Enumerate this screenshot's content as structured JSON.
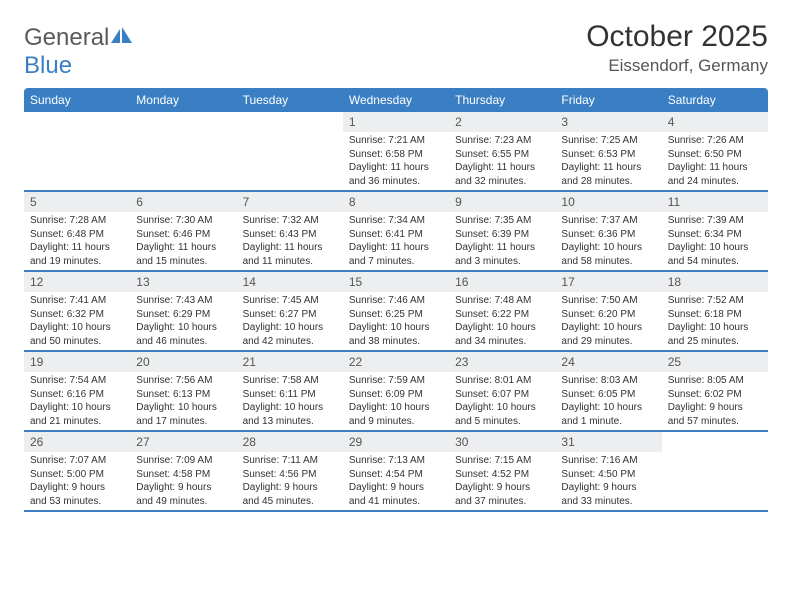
{
  "brand": {
    "part1": "General",
    "part2": "Blue"
  },
  "title": "October 2025",
  "location": "Eissendorf, Germany",
  "colors": {
    "header_bg": "#3a7fc4",
    "header_text": "#ffffff",
    "daynum_bg": "#eceeef",
    "row_divider": "#3a7fc4",
    "page_bg": "#ffffff",
    "body_text": "#333333"
  },
  "week_header": [
    "Sunday",
    "Monday",
    "Tuesday",
    "Wednesday",
    "Thursday",
    "Friday",
    "Saturday"
  ],
  "weeks": [
    [
      null,
      null,
      null,
      {
        "n": "1",
        "sr": "7:21 AM",
        "ss": "6:58 PM",
        "dl": "11 hours and 36 minutes."
      },
      {
        "n": "2",
        "sr": "7:23 AM",
        "ss": "6:55 PM",
        "dl": "11 hours and 32 minutes."
      },
      {
        "n": "3",
        "sr": "7:25 AM",
        "ss": "6:53 PM",
        "dl": "11 hours and 28 minutes."
      },
      {
        "n": "4",
        "sr": "7:26 AM",
        "ss": "6:50 PM",
        "dl": "11 hours and 24 minutes."
      }
    ],
    [
      {
        "n": "5",
        "sr": "7:28 AM",
        "ss": "6:48 PM",
        "dl": "11 hours and 19 minutes."
      },
      {
        "n": "6",
        "sr": "7:30 AM",
        "ss": "6:46 PM",
        "dl": "11 hours and 15 minutes."
      },
      {
        "n": "7",
        "sr": "7:32 AM",
        "ss": "6:43 PM",
        "dl": "11 hours and 11 minutes."
      },
      {
        "n": "8",
        "sr": "7:34 AM",
        "ss": "6:41 PM",
        "dl": "11 hours and 7 minutes."
      },
      {
        "n": "9",
        "sr": "7:35 AM",
        "ss": "6:39 PM",
        "dl": "11 hours and 3 minutes."
      },
      {
        "n": "10",
        "sr": "7:37 AM",
        "ss": "6:36 PM",
        "dl": "10 hours and 58 minutes."
      },
      {
        "n": "11",
        "sr": "7:39 AM",
        "ss": "6:34 PM",
        "dl": "10 hours and 54 minutes."
      }
    ],
    [
      {
        "n": "12",
        "sr": "7:41 AM",
        "ss": "6:32 PM",
        "dl": "10 hours and 50 minutes."
      },
      {
        "n": "13",
        "sr": "7:43 AM",
        "ss": "6:29 PM",
        "dl": "10 hours and 46 minutes."
      },
      {
        "n": "14",
        "sr": "7:45 AM",
        "ss": "6:27 PM",
        "dl": "10 hours and 42 minutes."
      },
      {
        "n": "15",
        "sr": "7:46 AM",
        "ss": "6:25 PM",
        "dl": "10 hours and 38 minutes."
      },
      {
        "n": "16",
        "sr": "7:48 AM",
        "ss": "6:22 PM",
        "dl": "10 hours and 34 minutes."
      },
      {
        "n": "17",
        "sr": "7:50 AM",
        "ss": "6:20 PM",
        "dl": "10 hours and 29 minutes."
      },
      {
        "n": "18",
        "sr": "7:52 AM",
        "ss": "6:18 PM",
        "dl": "10 hours and 25 minutes."
      }
    ],
    [
      {
        "n": "19",
        "sr": "7:54 AM",
        "ss": "6:16 PM",
        "dl": "10 hours and 21 minutes."
      },
      {
        "n": "20",
        "sr": "7:56 AM",
        "ss": "6:13 PM",
        "dl": "10 hours and 17 minutes."
      },
      {
        "n": "21",
        "sr": "7:58 AM",
        "ss": "6:11 PM",
        "dl": "10 hours and 13 minutes."
      },
      {
        "n": "22",
        "sr": "7:59 AM",
        "ss": "6:09 PM",
        "dl": "10 hours and 9 minutes."
      },
      {
        "n": "23",
        "sr": "8:01 AM",
        "ss": "6:07 PM",
        "dl": "10 hours and 5 minutes."
      },
      {
        "n": "24",
        "sr": "8:03 AM",
        "ss": "6:05 PM",
        "dl": "10 hours and 1 minute."
      },
      {
        "n": "25",
        "sr": "8:05 AM",
        "ss": "6:02 PM",
        "dl": "9 hours and 57 minutes."
      }
    ],
    [
      {
        "n": "26",
        "sr": "7:07 AM",
        "ss": "5:00 PM",
        "dl": "9 hours and 53 minutes."
      },
      {
        "n": "27",
        "sr": "7:09 AM",
        "ss": "4:58 PM",
        "dl": "9 hours and 49 minutes."
      },
      {
        "n": "28",
        "sr": "7:11 AM",
        "ss": "4:56 PM",
        "dl": "9 hours and 45 minutes."
      },
      {
        "n": "29",
        "sr": "7:13 AM",
        "ss": "4:54 PM",
        "dl": "9 hours and 41 minutes."
      },
      {
        "n": "30",
        "sr": "7:15 AM",
        "ss": "4:52 PM",
        "dl": "9 hours and 37 minutes."
      },
      {
        "n": "31",
        "sr": "7:16 AM",
        "ss": "4:50 PM",
        "dl": "9 hours and 33 minutes."
      },
      null
    ]
  ],
  "labels": {
    "sunrise": "Sunrise:",
    "sunset": "Sunset:",
    "daylight": "Daylight:"
  }
}
